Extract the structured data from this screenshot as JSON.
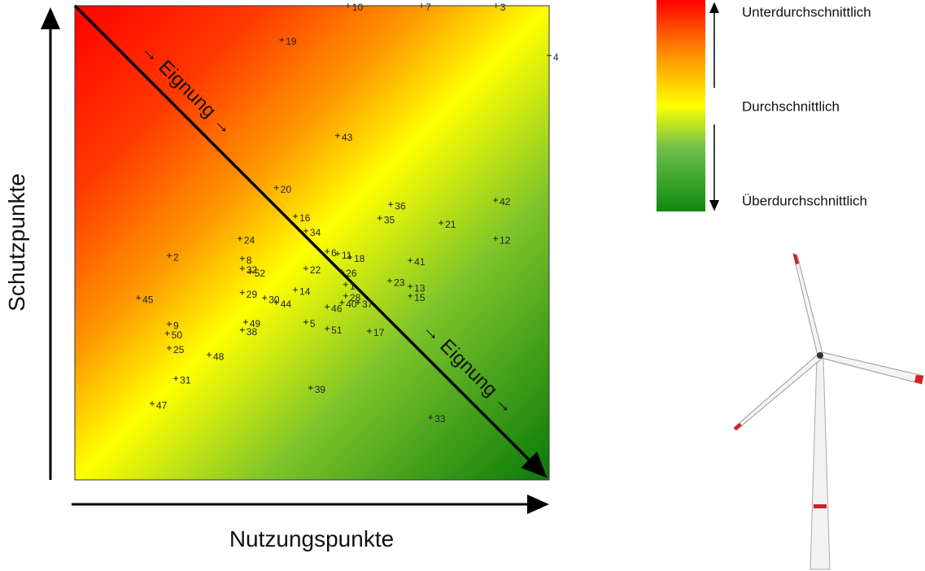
{
  "chart_data": {
    "type": "scatter",
    "x_label": "Nutzungspunkte",
    "y_label": "Schutzpunkte",
    "annotations": [
      "→ Eignung →",
      "→ Eignung →"
    ],
    "legend": [
      "Unterdurchschnittlich",
      "Durchschnittlich",
      "Überdurchschnittlich"
    ],
    "xlim": [
      0,
      100
    ],
    "ylim": [
      0,
      100
    ],
    "marker_color": "#222222",
    "labels": [
      10,
      7,
      3,
      4,
      19,
      43,
      20,
      36,
      42,
      16,
      35,
      21,
      12,
      34,
      24,
      2,
      8,
      6,
      11,
      18,
      41,
      32,
      52,
      22,
      26,
      23,
      13,
      1,
      14,
      30,
      29,
      28,
      45,
      15,
      46,
      40,
      37,
      44,
      5,
      49,
      9,
      51,
      17,
      38,
      50,
      25,
      48,
      31,
      39,
      47,
      33
    ],
    "x": [
      57.6,
      73.1,
      88.8,
      100,
      43.6,
      55.4,
      42.5,
      66.6,
      88.7,
      46.5,
      64.3,
      77.2,
      88.7,
      48.7,
      34.8,
      19.9,
      35.3,
      53.2,
      55.4,
      58.0,
      70.7,
      35.3,
      37.0,
      48.7,
      56.3,
      66.4,
      70.7,
      57.1,
      46.5,
      40.0,
      35.3,
      57.1,
      13.4,
      70.7,
      53.2,
      56.3,
      59.7,
      42.5,
      48.7,
      36.0,
      19.9,
      53.2,
      62.1,
      35.3,
      19.5,
      19.9,
      28.3,
      21.3,
      49.7,
      16.3,
      75.0
    ],
    "y": [
      100,
      100,
      100,
      89.5,
      92.8,
      72.6,
      61.6,
      58.1,
      59.0,
      55.6,
      55.2,
      54.2,
      50.9,
      52.5,
      50.9,
      47.3,
      46.7,
      48.2,
      47.7,
      47.0,
      46.3,
      44.6,
      43.9,
      44.6,
      43.9,
      42.0,
      40.8,
      41.2,
      40.1,
      38.4,
      39.5,
      38.8,
      38.4,
      38.8,
      36.5,
      37.4,
      37.4,
      37.4,
      33.3,
      33.3,
      32.9,
      31.9,
      31.4,
      31.6,
      30.9,
      27.8,
      26.4,
      21.4,
      19.4,
      16.1,
      13.2
    ]
  }
}
